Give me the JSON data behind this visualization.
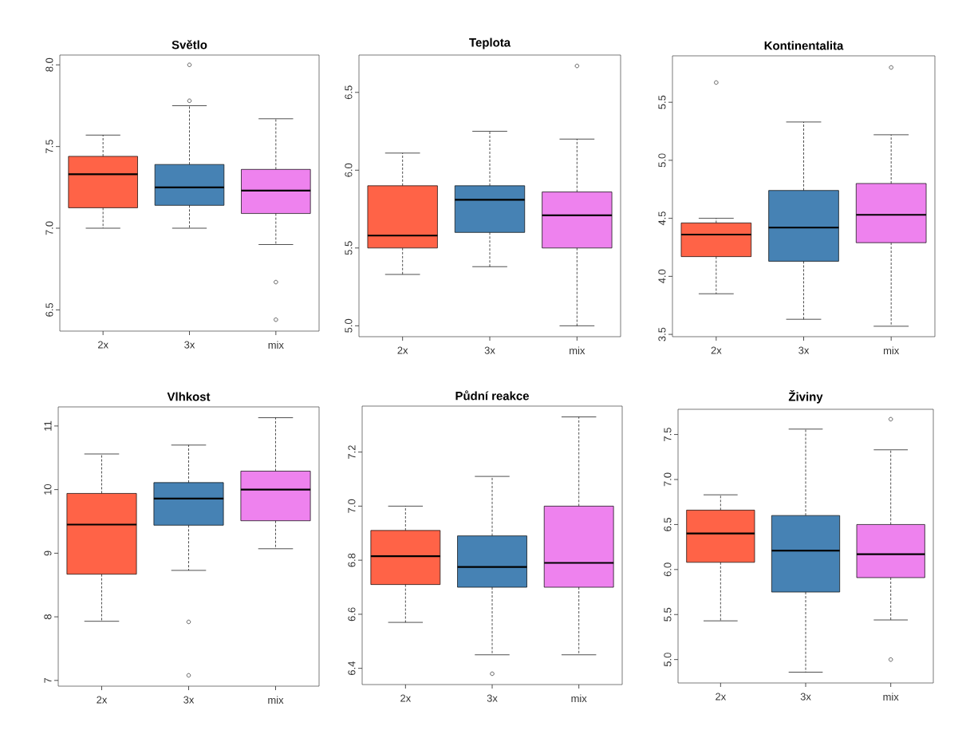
{
  "chart_data": [
    {
      "type": "box",
      "title": "Světlo",
      "categories": [
        "2x",
        "3x",
        "mix"
      ],
      "colors": [
        "#ff6347",
        "#4682b4",
        "#ee82ee"
      ],
      "ylim": [
        6.37,
        8.06
      ],
      "yticks": [
        6.5,
        {
          "value": 7,
          "label": "7.0"
        },
        7.5,
        {
          "value": 8,
          "label": "8.0"
        }
      ],
      "boxes": [
        {
          "low": 7.0,
          "q1": 7.125,
          "median": 7.33,
          "q3": 7.44,
          "high": 7.57
        },
        {
          "low": 7.0,
          "q1": 7.14,
          "median": 7.25,
          "q3": 7.39,
          "high": 7.75,
          "outliers": [
            7.78,
            8.0
          ]
        },
        {
          "low": 6.9,
          "q1": 7.09,
          "median": 7.23,
          "q3": 7.36,
          "high": 7.67,
          "outliers": [
            6.67,
            6.44
          ]
        }
      ]
    },
    {
      "type": "box",
      "title": "Teplota",
      "categories": [
        "2x",
        "3x",
        "mix"
      ],
      "colors": [
        "#ff6347",
        "#4682b4",
        "#ee82ee"
      ],
      "ylim": [
        4.93,
        6.74
      ],
      "yticks": [
        {
          "value": 5,
          "label": "5.0"
        },
        5.5,
        {
          "value": 6,
          "label": "6.0"
        },
        6.5
      ],
      "boxes": [
        {
          "low": 5.33,
          "q1": 5.5,
          "median": 5.58,
          "q3": 5.9,
          "high": 6.11
        },
        {
          "low": 5.38,
          "q1": 5.6,
          "median": 5.81,
          "q3": 5.9,
          "high": 6.25
        },
        {
          "low": 5.0,
          "q1": 5.5,
          "median": 5.71,
          "q3": 5.86,
          "high": 6.2,
          "outliers": [
            6.67
          ]
        }
      ]
    },
    {
      "type": "box",
      "title": "Kontinentalita",
      "categories": [
        "2x",
        "3x",
        "mix"
      ],
      "colors": [
        "#ff6347",
        "#4682b4",
        "#ee82ee"
      ],
      "ylim": [
        3.48,
        5.9
      ],
      "yticks": [
        3.5,
        {
          "value": 4,
          "label": "4.0"
        },
        4.5,
        {
          "value": 5,
          "label": "5.0"
        },
        5.5
      ],
      "boxes": [
        {
          "low": 3.85,
          "q1": 4.17,
          "median": 4.36,
          "q3": 4.46,
          "high": 4.5,
          "outliers": [
            5.67
          ]
        },
        {
          "low": 3.63,
          "q1": 4.13,
          "median": 4.42,
          "q3": 4.74,
          "high": 5.33
        },
        {
          "low": 3.57,
          "q1": 4.29,
          "median": 4.53,
          "q3": 4.8,
          "high": 5.22,
          "outliers": [
            5.8
          ]
        }
      ]
    },
    {
      "type": "box",
      "title": "Vlhkost",
      "categories": [
        "2x",
        "3x",
        "mix"
      ],
      "colors": [
        "#ff6347",
        "#4682b4",
        "#ee82ee"
      ],
      "ylim": [
        6.91,
        11.3
      ],
      "yticks": [
        7,
        8,
        9,
        10,
        11
      ],
      "boxes": [
        {
          "low": 7.93,
          "q1": 8.67,
          "median": 9.45,
          "q3": 9.94,
          "high": 10.56
        },
        {
          "low": 8.73,
          "q1": 9.44,
          "median": 9.86,
          "q3": 10.11,
          "high": 10.7,
          "outliers": [
            7.92,
            7.08
          ]
        },
        {
          "low": 9.07,
          "q1": 9.51,
          "median": 10.0,
          "q3": 10.29,
          "high": 11.13
        }
      ]
    },
    {
      "type": "box",
      "title": "Půdní reakce",
      "categories": [
        "2x",
        "3x",
        "mix"
      ],
      "colors": [
        "#ff6347",
        "#4682b4",
        "#ee82ee"
      ],
      "ylim": [
        6.34,
        7.37
      ],
      "yticks": [
        6.4,
        6.6,
        6.8,
        {
          "value": 7,
          "label": "7.0"
        },
        7.2
      ],
      "boxes": [
        {
          "low": 6.57,
          "q1": 6.71,
          "median": 6.815,
          "q3": 6.91,
          "high": 7.0
        },
        {
          "low": 6.45,
          "q1": 6.7,
          "median": 6.775,
          "q3": 6.89,
          "high": 7.11,
          "outliers": [
            6.38
          ]
        },
        {
          "low": 6.45,
          "q1": 6.7,
          "median": 6.79,
          "q3": 7.0,
          "high": 7.33
        }
      ]
    },
    {
      "type": "box",
      "title": "Živiny",
      "categories": [
        "2x",
        "3x",
        "mix"
      ],
      "colors": [
        "#ff6347",
        "#4682b4",
        "#ee82ee"
      ],
      "ylim": [
        4.74,
        7.78
      ],
      "yticks": [
        {
          "value": 5,
          "label": "5.0"
        },
        5.5,
        {
          "value": 6,
          "label": "6.0"
        },
        6.5,
        {
          "value": 7,
          "label": "7.0"
        },
        7.5
      ],
      "boxes": [
        {
          "low": 5.43,
          "q1": 6.08,
          "median": 6.4,
          "q3": 6.66,
          "high": 6.83
        },
        {
          "low": 4.86,
          "q1": 5.75,
          "median": 6.21,
          "q3": 6.6,
          "high": 7.56
        },
        {
          "low": 5.44,
          "q1": 5.91,
          "median": 6.17,
          "q3": 6.5,
          "high": 7.33,
          "outliers": [
            7.67,
            5.0
          ]
        }
      ]
    }
  ]
}
